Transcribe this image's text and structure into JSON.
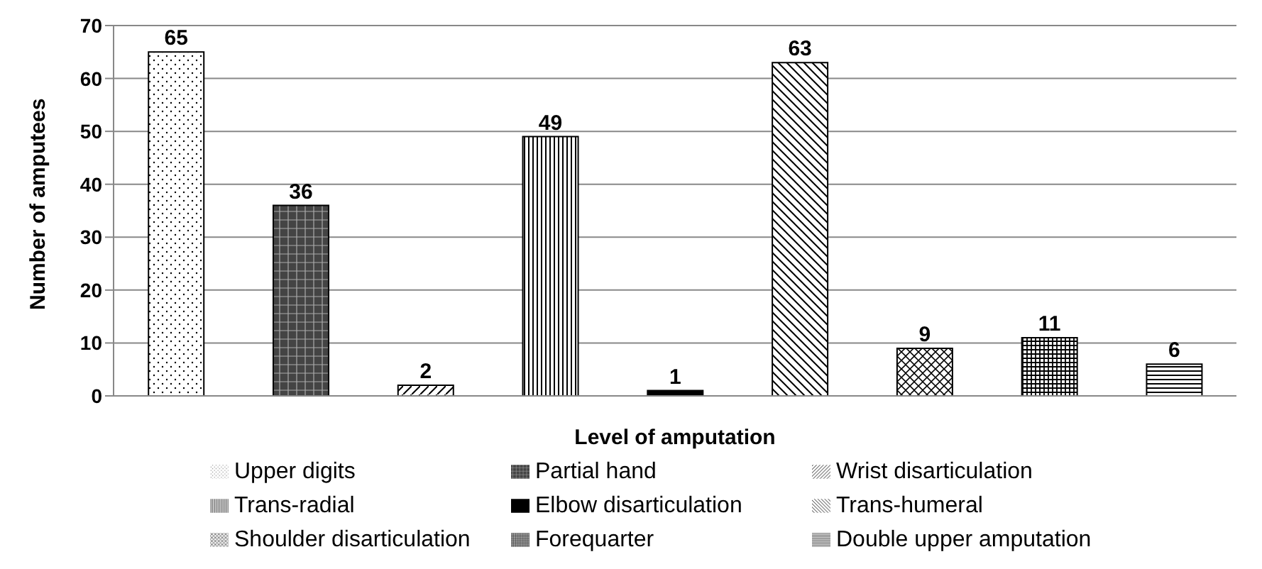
{
  "chart_data": {
    "type": "bar",
    "xlabel": "Level of amputation",
    "ylabel": "Number of amputees",
    "categories": [
      null,
      null,
      null,
      null,
      null,
      null,
      null,
      null,
      null
    ],
    "stacked": true,
    "series": [
      {
        "name": "Upper digits",
        "color": "#000000",
        "values": [
          65,
          null,
          null,
          null,
          null,
          null,
          null,
          null,
          null
        ]
      },
      {
        "name": "Partial hand",
        "color": "#000000",
        "values": [
          null,
          36,
          null,
          null,
          null,
          null,
          null,
          null,
          null
        ]
      },
      {
        "name": "Wrist disarticulation",
        "color": "#000000",
        "values": [
          null,
          null,
          2,
          null,
          null,
          null,
          null,
          null,
          null
        ]
      },
      {
        "name": "Trans-radial",
        "color": "#000000",
        "values": [
          null,
          null,
          null,
          49,
          null,
          null,
          null,
          null,
          null
        ]
      },
      {
        "name": "Elbow disarticulation",
        "color": "#000000",
        "values": [
          null,
          null,
          null,
          null,
          1,
          null,
          null,
          null,
          null
        ]
      },
      {
        "name": "Trans-humeral",
        "color": "#000000",
        "values": [
          null,
          null,
          null,
          null,
          null,
          63,
          null,
          null,
          null
        ]
      },
      {
        "name": "Shoulder disarticulation",
        "color": "#000000",
        "values": [
          null,
          null,
          null,
          null,
          null,
          null,
          9,
          null,
          null
        ]
      },
      {
        "name": "Forequarter",
        "color": "#000000",
        "values": [
          null,
          null,
          null,
          null,
          null,
          null,
          null,
          11,
          null
        ]
      },
      {
        "name": "Double upper amputation",
        "color": "#000000",
        "values": [
          null,
          null,
          null,
          null,
          null,
          null,
          null,
          null,
          6
        ]
      }
    ],
    "ylim": [
      0,
      70
    ],
    "yticks": [
      0,
      10,
      20,
      30,
      40,
      50,
      60,
      70
    ],
    "grid": "y",
    "legend": "bottom",
    "data_labels": true
  }
}
